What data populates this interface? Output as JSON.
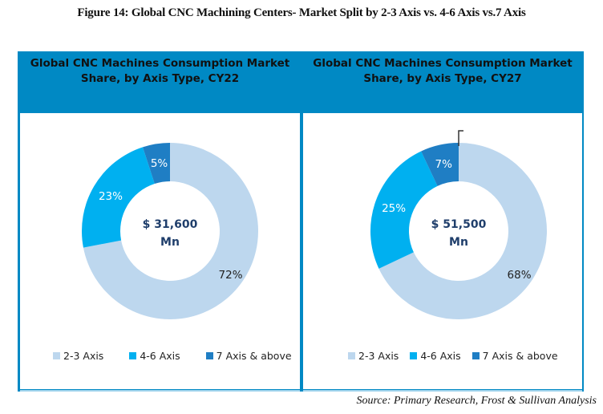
{
  "figure_title": "Figure 14: Global CNC Machining Centers- Market Split by 2-3 Axis vs. 4-6 Axis vs.7 Axis",
  "source": "Source: Primary Research, Frost & Sullivan Analysis",
  "colors": {
    "frame": "#0089c4",
    "axis_2_3": "#bdd7ee",
    "axis_4_6": "#00b0f0",
    "axis_7_plus": "#1f7ec4",
    "center_text": "#1f3e6b"
  },
  "chart_data": [
    {
      "type": "pie",
      "variant": "donut",
      "title": "Global CNC Machines Consumption Market Share, by Axis Type, CY22",
      "title_lines": [
        "Global CNC Machines Consumption Market",
        "Share, by Axis Type, CY22"
      ],
      "center_label": [
        "$ 31,600",
        "Mn"
      ],
      "categories": [
        "2-3 Axis",
        "4-6 Axis",
        "7 Axis & above"
      ],
      "values": [
        72,
        23,
        5
      ],
      "labels": [
        "72%",
        "23%",
        "5%"
      ],
      "unit": "%",
      "legend": {
        "position": "bottom",
        "entries": [
          "2-3 Axis",
          "4-6 Axis",
          "7 Axis & above"
        ]
      }
    },
    {
      "type": "pie",
      "variant": "donut",
      "title": "Global CNC Machines Consumption Market Share, by Axis Type, CY27",
      "title_lines": [
        "Global CNC Machines Consumption Market",
        "Share, by Axis Type, CY27"
      ],
      "center_label": [
        "$ 51,500",
        "Mn"
      ],
      "categories": [
        "2-3 Axis",
        "4-6 Axis",
        "7 Axis & above"
      ],
      "values": [
        68,
        25,
        7
      ],
      "labels": [
        "68%",
        "25%",
        "7%"
      ],
      "unit": "%",
      "legend": {
        "position": "bottom",
        "entries": [
          "2-3 Axis",
          "4-6 Axis",
          "7 Axis & above"
        ]
      }
    }
  ]
}
